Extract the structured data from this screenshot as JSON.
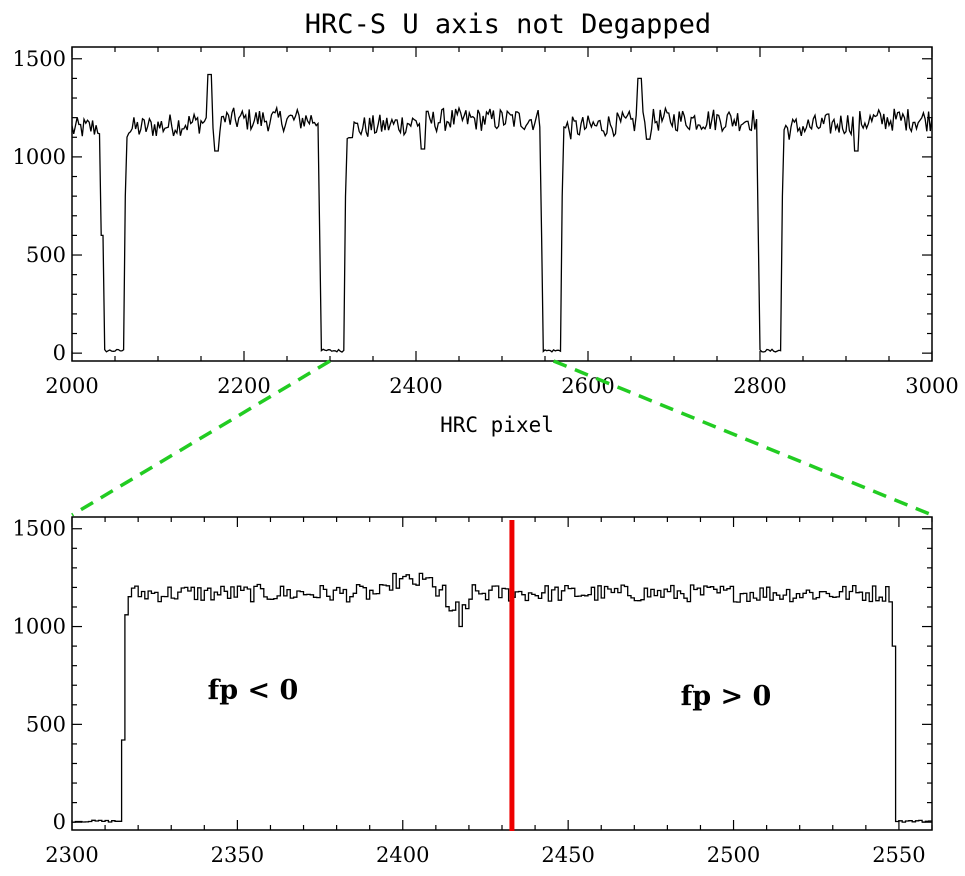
{
  "chart_data": [
    {
      "type": "line",
      "title": "HRC-S U axis not Degapped",
      "xlabel": "HRC pixel",
      "ylabel": "",
      "xlim": [
        2000,
        3000
      ],
      "ylim": [
        -40,
        1560
      ],
      "xticks": [
        "2000",
        "2200",
        "2400",
        "2600",
        "2800",
        "3000"
      ],
      "yticks": [
        "0",
        "500",
        "1000",
        "1500"
      ],
      "plateau_level": 1170,
      "gaps": [
        {
          "x_start": 2037,
          "x_end": 2060
        },
        {
          "x_start": 2290,
          "x_end": 2316
        },
        {
          "x_start": 2548,
          "x_end": 2568
        },
        {
          "x_start": 2800,
          "x_end": 2824
        }
      ],
      "features": [
        {
          "x": 2160,
          "y": 1420
        },
        {
          "x": 2168,
          "y": 1030
        },
        {
          "x": 2408,
          "y": 1040
        },
        {
          "x": 2660,
          "y": 1400
        },
        {
          "x": 2670,
          "y": 1090
        },
        {
          "x": 2912,
          "y": 1030
        }
      ],
      "grid": false
    },
    {
      "type": "line",
      "xlabel": "",
      "ylabel": "",
      "xlim": [
        2300,
        2560
      ],
      "ylim": [
        -40,
        1560
      ],
      "xticks": [
        "2300",
        "2350",
        "2400",
        "2450",
        "2500",
        "2550"
      ],
      "yticks": [
        "0",
        "500",
        "1000",
        "1500"
      ],
      "plateau_level": 1170,
      "edges": {
        "rise_x": 2316,
        "fall_x": 2548
      },
      "dip": {
        "x": 2417,
        "y": 1000
      },
      "divider_x": 2433,
      "divider_color": "#ee0000",
      "zoom_connector_color": "#22cc22",
      "annotations": [
        {
          "text": "fp < 0",
          "x": 2341,
          "y": 630
        },
        {
          "text": "fp > 0",
          "x": 2484,
          "y": 600
        }
      ],
      "grid": false
    }
  ]
}
